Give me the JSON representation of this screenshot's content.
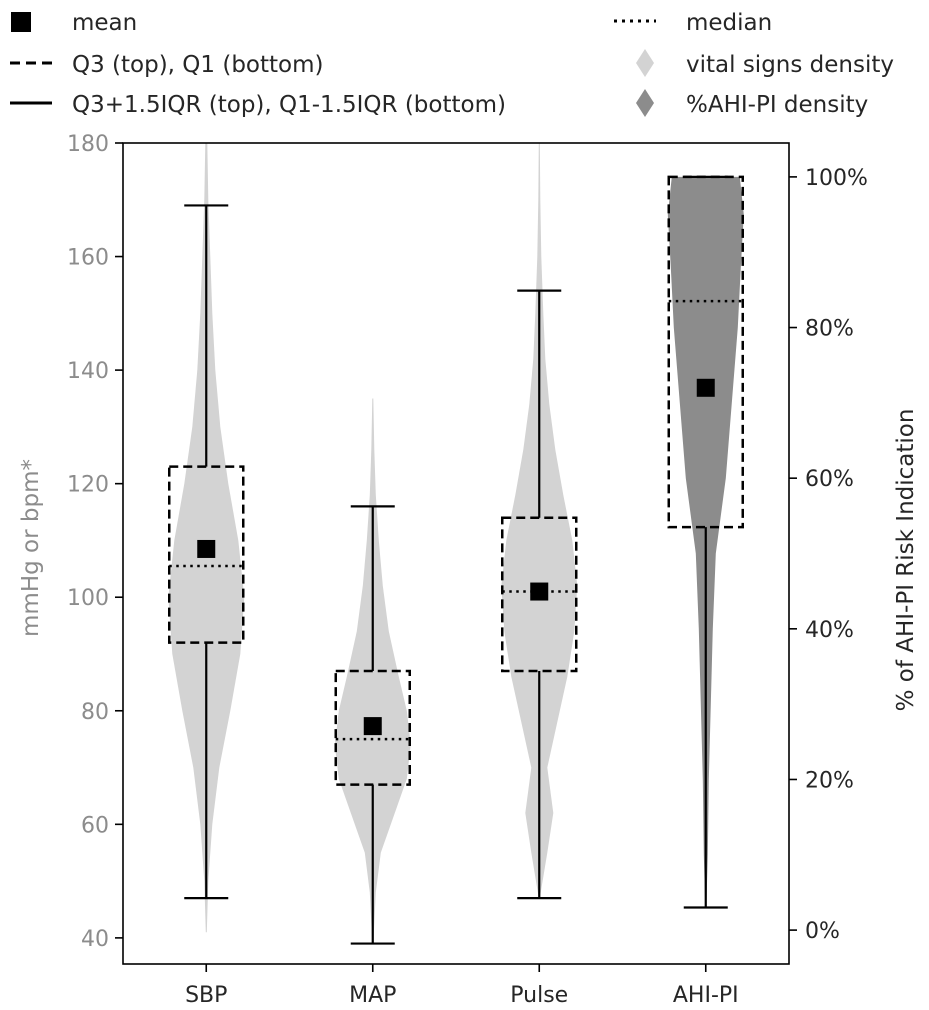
{
  "chart_data": {
    "type": "violin",
    "categories": [
      "SBP",
      "MAP",
      "Pulse",
      "AHI-PI"
    ],
    "left_axis": {
      "label": "mmHg or bpm*",
      "ticks": [
        "40",
        "60",
        "80",
        "100",
        "120",
        "140",
        "160",
        "180"
      ],
      "tick_values": [
        40,
        60,
        80,
        100,
        120,
        140,
        160,
        180
      ],
      "range": [
        35.4,
        180
      ]
    },
    "right_axis": {
      "label": "% of AHI-PI Risk Indication",
      "ticks": [
        "0%",
        "20%",
        "40%",
        "60%",
        "80%",
        "100%"
      ],
      "tick_values": [
        0,
        20,
        40,
        60,
        80,
        100
      ],
      "range": [
        -4.5,
        104.5
      ]
    },
    "legend": {
      "placement": "top",
      "items": [
        {
          "key": "mean",
          "label": "mean"
        },
        {
          "key": "q_box",
          "label": "Q3 (top), Q1 (bottom)"
        },
        {
          "key": "whisker",
          "label": "Q3+1.5IQR (top), Q1-1.5IQR (bottom)"
        },
        {
          "key": "median",
          "label": "median"
        },
        {
          "key": "vital_density",
          "label": "vital signs density"
        },
        {
          "key": "ahi_density",
          "label": "%AHI-PI density"
        }
      ]
    },
    "series": [
      {
        "category": "SBP",
        "axis": "left",
        "mean": 108.5,
        "median": 105.5,
        "q1": 92,
        "q3": 123,
        "whisker_low": 47,
        "whisker_high": 169,
        "min": 41,
        "max": 180,
        "density": [
          [
            41,
            0.5
          ],
          [
            50,
            2
          ],
          [
            60,
            6
          ],
          [
            70,
            13
          ],
          [
            80,
            24
          ],
          [
            90,
            34
          ],
          [
            100,
            38
          ],
          [
            110,
            32
          ],
          [
            120,
            22
          ],
          [
            130,
            14
          ],
          [
            140,
            9
          ],
          [
            150,
            6
          ],
          [
            160,
            4
          ],
          [
            170,
            2
          ],
          [
            180,
            1
          ]
        ]
      },
      {
        "category": "MAP",
        "axis": "left",
        "mean": 77.3,
        "median": 75,
        "q1": 67,
        "q3": 87,
        "whisker_low": 39,
        "whisker_high": 116,
        "min": 39,
        "max": 135,
        "density": [
          [
            39,
            0.5
          ],
          [
            48,
            3
          ],
          [
            55,
            8
          ],
          [
            62,
            22
          ],
          [
            68,
            34
          ],
          [
            74,
            38
          ],
          [
            80,
            34
          ],
          [
            86,
            26
          ],
          [
            94,
            16
          ],
          [
            102,
            10
          ],
          [
            110,
            6
          ],
          [
            118,
            3
          ],
          [
            126,
            1.5
          ],
          [
            135,
            0.5
          ]
        ]
      },
      {
        "category": "Pulse",
        "axis": "left",
        "mean": 101,
        "median": 101,
        "q1": 87,
        "q3": 114,
        "whisker_low": 47,
        "whisker_high": 154,
        "min": 47,
        "max": 180,
        "density": [
          [
            47,
            0.5
          ],
          [
            55,
            8
          ],
          [
            62,
            14
          ],
          [
            70,
            8
          ],
          [
            78,
            18
          ],
          [
            86,
            28
          ],
          [
            94,
            35
          ],
          [
            102,
            38
          ],
          [
            110,
            33
          ],
          [
            118,
            24
          ],
          [
            126,
            16
          ],
          [
            134,
            10
          ],
          [
            142,
            6
          ],
          [
            150,
            4
          ],
          [
            160,
            2
          ],
          [
            170,
            1
          ],
          [
            180,
            0.5
          ]
        ]
      },
      {
        "category": "AHI-PI",
        "axis": "right",
        "mean": 72,
        "median": 83.5,
        "q1": 53.5,
        "q3": 100,
        "whisker_low": 3,
        "whisker_high": 100,
        "min": 3,
        "max": 100,
        "density": [
          [
            3,
            0.5
          ],
          [
            10,
            2
          ],
          [
            20,
            3
          ],
          [
            30,
            5
          ],
          [
            40,
            7
          ],
          [
            50,
            10
          ],
          [
            55,
            15
          ],
          [
            60,
            20
          ],
          [
            70,
            26
          ],
          [
            80,
            32
          ],
          [
            88,
            35
          ],
          [
            95,
            38
          ],
          [
            100,
            34
          ]
        ]
      }
    ],
    "colors": {
      "vital_density": "#d3d3d3",
      "ahi_density": "#8c8c8c",
      "left_axis_text": "#8c8c8c",
      "right_axis_text": "#262626",
      "lines": "#000000"
    }
  }
}
